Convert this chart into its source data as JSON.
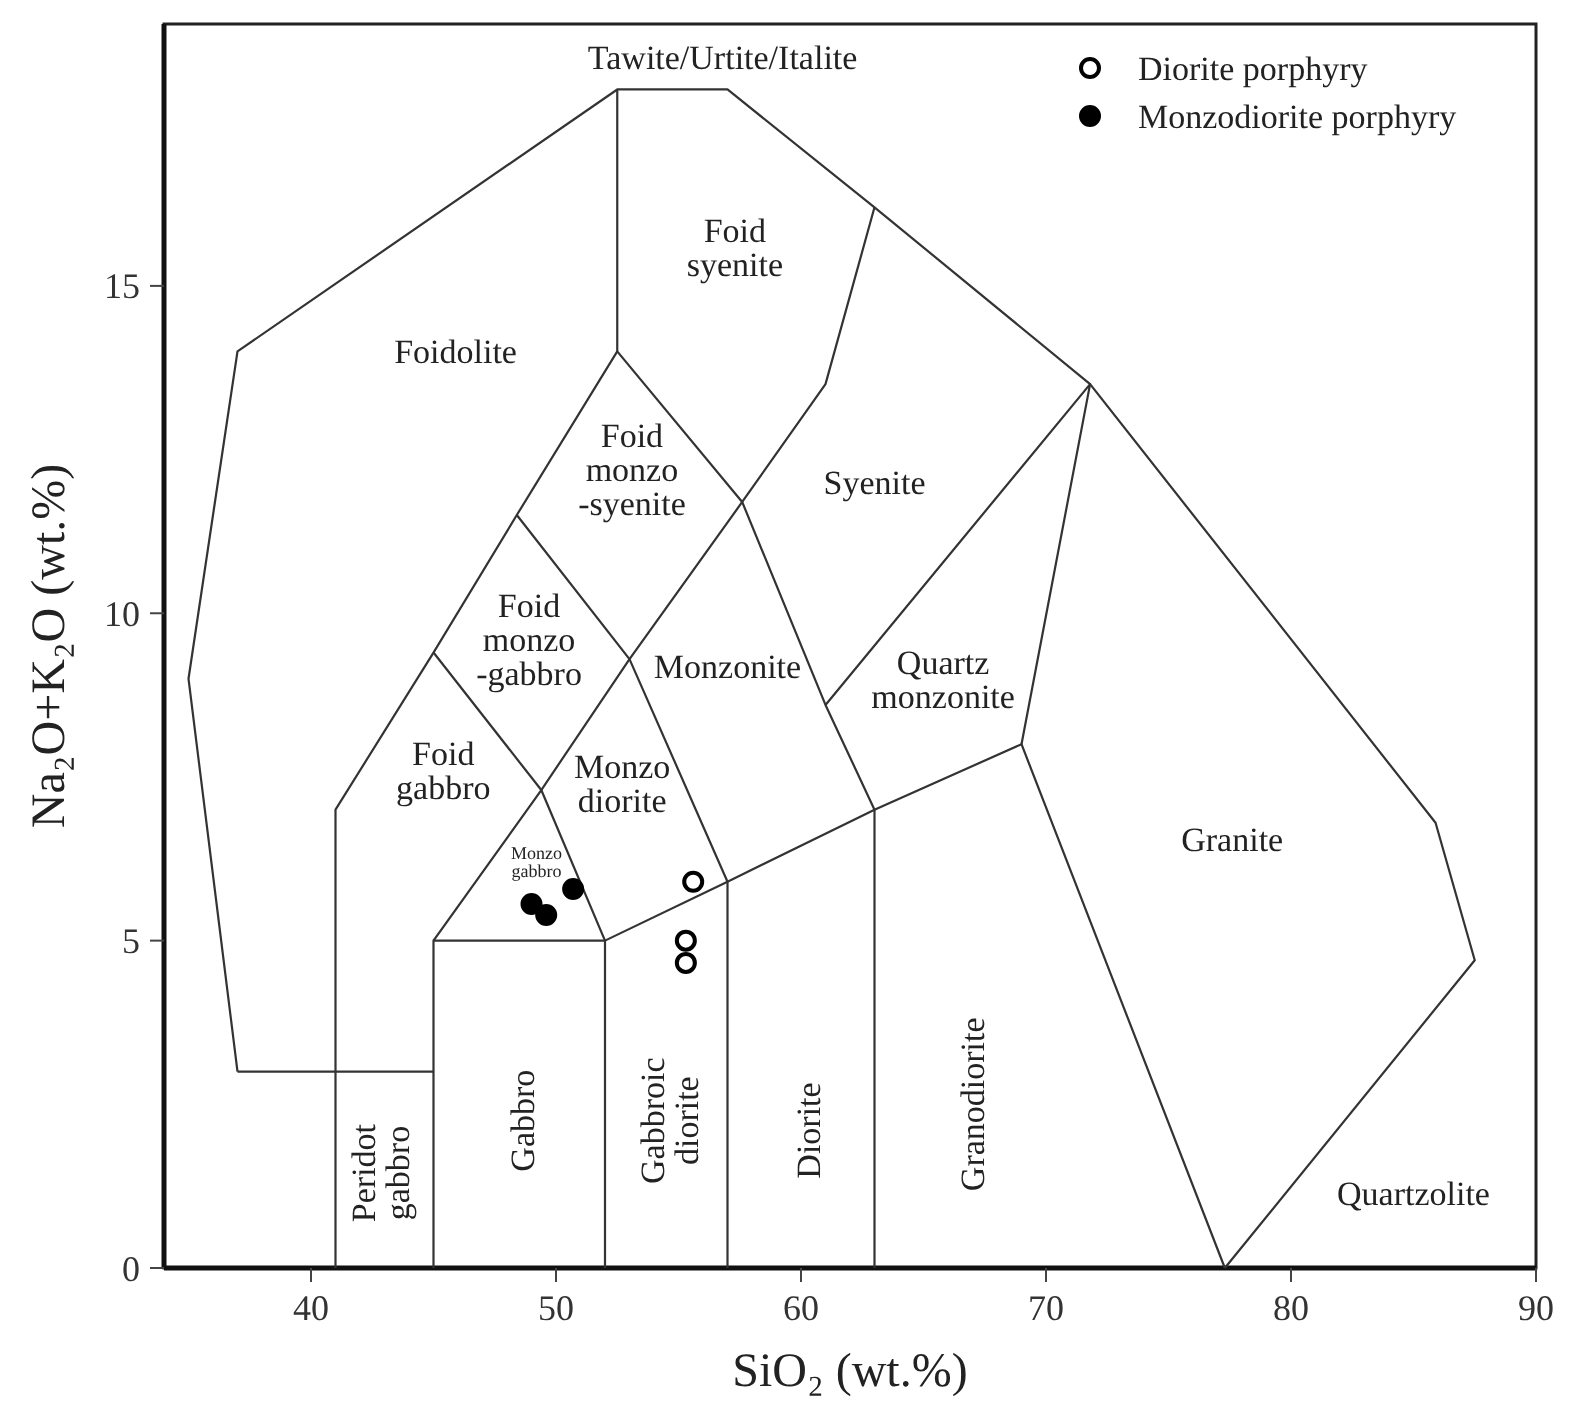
{
  "chart_data": {
    "type": "scatter",
    "xlabel": "SiO₂ (wt.%)",
    "ylabel": "Na₂O+K₂O (wt.%)",
    "xlim": [
      34,
      90
    ],
    "ylim": [
      0,
      19
    ],
    "xticks": [
      40,
      50,
      60,
      70,
      80,
      90
    ],
    "yticks": [
      0,
      5,
      10,
      15
    ],
    "grid": false,
    "legend": "top right",
    "marker": "circle",
    "series": [
      {
        "name": "Diorite porphyry",
        "color": "#ffffff",
        "x": [
          55.6,
          55.3,
          55.3
        ],
        "values": [
          5.9,
          5.0,
          4.66
        ]
      },
      {
        "name": "Monzodiorite porphyry",
        "color": "#000000",
        "x": [
          49.0,
          49.6,
          50.7
        ],
        "values": [
          5.56,
          5.39,
          5.79
        ]
      },
      {
        "type": "line",
        "color": "#333333",
        "marker": "none",
        "x": [
          37,
          35,
          37,
          52.5,
          57,
          63,
          71.8,
          85.9,
          87.5,
          77.3
        ],
        "values": [
          3,
          9,
          14,
          18,
          18,
          16.2,
          13.5,
          6.8,
          4.7,
          0
        ]
      },
      {
        "type": "line",
        "color": "#333333",
        "marker": "none",
        "x": [
          37,
          45
        ],
        "values": [
          3,
          3
        ]
      },
      {
        "type": "line",
        "color": "#333333",
        "marker": "none",
        "x": [
          41,
          41,
          45,
          48.4,
          52.5,
          57.6,
          61,
          63
        ],
        "values": [
          0,
          7,
          9.4,
          11.5,
          14,
          11.7,
          13.5,
          16.2
        ]
      },
      {
        "type": "line",
        "color": "#333333",
        "marker": "none",
        "x": [
          52.5,
          52.5
        ],
        "values": [
          14,
          18
        ]
      },
      {
        "type": "line",
        "color": "#333333",
        "marker": "none",
        "x": [
          45,
          45,
          52,
          52
        ],
        "values": [
          0,
          5,
          5,
          0
        ]
      },
      {
        "type": "line",
        "color": "#333333",
        "marker": "none",
        "x": [
          45,
          49.4,
          53,
          57.6
        ],
        "values": [
          5,
          7.3,
          9.3,
          11.7
        ]
      },
      {
        "type": "line",
        "color": "#333333",
        "marker": "none",
        "x": [
          48.4,
          53,
          57,
          57
        ],
        "values": [
          11.5,
          9.3,
          5.9,
          0
        ]
      },
      {
        "type": "line",
        "color": "#333333",
        "marker": "none",
        "x": [
          45,
          49.4,
          52
        ],
        "values": [
          9.4,
          7.3,
          5
        ]
      },
      {
        "type": "line",
        "color": "#333333",
        "marker": "none",
        "x": [
          52,
          57,
          63,
          69,
          77.3
        ],
        "values": [
          5,
          5.9,
          7,
          8,
          0
        ]
      },
      {
        "type": "line",
        "color": "#333333",
        "marker": "none",
        "x": [
          57.6,
          61,
          63,
          63
        ],
        "values": [
          11.7,
          8.6,
          7,
          0
        ]
      },
      {
        "type": "line",
        "color": "#333333",
        "marker": "none",
        "x": [
          61,
          71.8,
          69
        ],
        "values": [
          8.6,
          13.5,
          8
        ]
      }
    ],
    "annotations": [
      "Tawite/Urtite/Italite",
      "Foid\nsyenite",
      "Foidolite",
      "Foid\nmonzo\n-syenite",
      "Syenite",
      "Foid\nmonzo\n-gabbro",
      "Monzonite",
      "Quartz\nmonzonite",
      "Foid\ngabbro",
      "Monzo\ndiorite",
      "Monzo\ngabbro",
      "Granite",
      "Peridot\ngabbro",
      "Gabbro",
      "Gabbroic\ndiorite",
      "Diorite",
      "Granodiorite",
      "Quartzolite"
    ]
  }
}
